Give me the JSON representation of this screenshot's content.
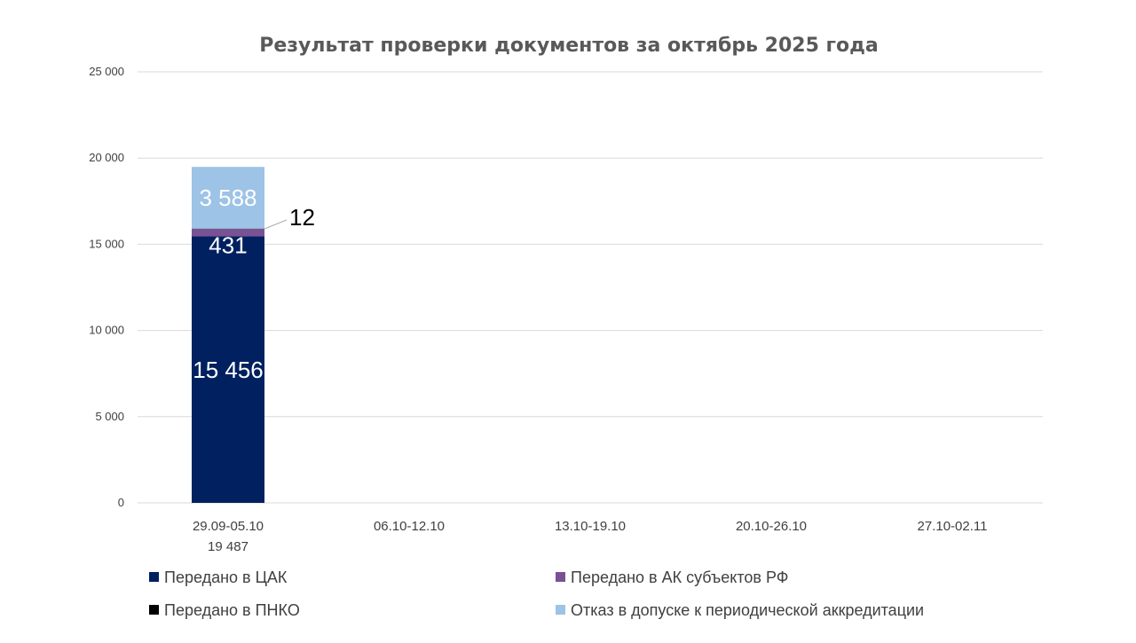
{
  "chart_data": {
    "type": "bar",
    "stacked": true,
    "title": "Результат проверки документов за октябрь 2025 года",
    "categories": [
      "29.09-05.10",
      "06.10-12.10",
      "13.10-19.10",
      "20.10-26.10",
      "27.10-02.11"
    ],
    "category_totals": [
      "19 487",
      "",
      "",
      "",
      ""
    ],
    "series": [
      {
        "name": "Передано в ЦАК",
        "color": "#002060",
        "values": [
          15456,
          null,
          null,
          null,
          null
        ],
        "labels": [
          "15 456",
          "",
          "",
          "",
          ""
        ],
        "label_color": "#ffffff"
      },
      {
        "name": "Передано в АК субъектов РФ",
        "color": "#7a5195",
        "values": [
          431,
          null,
          null,
          null,
          null
        ],
        "labels": [
          "431",
          "",
          "",
          "",
          ""
        ],
        "label_color": "#ffffff"
      },
      {
        "name": "Передано в ПНКО",
        "color": "#000000",
        "values": [
          12,
          null,
          null,
          null,
          null
        ],
        "labels": [
          "12",
          "",
          "",
          "",
          ""
        ],
        "label_color": "#000000",
        "label_callout": true
      },
      {
        "name": "Отказ в допуске к периодической аккредитации",
        "color": "#9dc3e6",
        "values": [
          3588,
          null,
          null,
          null,
          null
        ],
        "labels": [
          "3 588",
          "",
          "",
          "",
          ""
        ],
        "label_color": "#ffffff"
      }
    ],
    "ylim": [
      0,
      25000
    ],
    "yticks": [
      0,
      5000,
      10000,
      15000,
      20000,
      25000
    ],
    "ytick_labels": [
      "0",
      "5 000",
      "10 000",
      "15 000",
      "20 000",
      "25 000"
    ],
    "grid": true,
    "legend_position": "bottom",
    "legend_order": [
      0,
      1,
      2,
      3
    ],
    "xlabel": "",
    "ylabel": ""
  }
}
